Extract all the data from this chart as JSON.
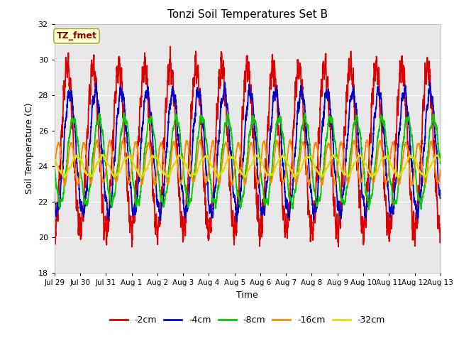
{
  "title": "Tonzi Soil Temperatures Set B",
  "xlabel": "Time",
  "ylabel": "Soil Temperature (C)",
  "ylim": [
    18,
    32
  ],
  "yticks": [
    18,
    20,
    22,
    24,
    26,
    28,
    30,
    32
  ],
  "num_points": 3000,
  "series": [
    {
      "label": "-2cm",
      "color": "#dd0000",
      "amplitude": 4.6,
      "period": 1.0,
      "mean": 25.0,
      "phase": 0.25,
      "noise_amp": 0.5,
      "noise_freq_mult": 3
    },
    {
      "label": "-4cm",
      "color": "#0000cc",
      "amplitude": 3.4,
      "period": 1.0,
      "mean": 24.8,
      "phase": 0.35,
      "noise_amp": 0.25,
      "noise_freq_mult": 2
    },
    {
      "label": "-8cm",
      "color": "#00cc00",
      "amplitude": 2.4,
      "period": 1.0,
      "mean": 24.3,
      "phase": 0.48,
      "noise_amp": 0.15,
      "noise_freq_mult": 2
    },
    {
      "label": "-16cm",
      "color": "#ff8800",
      "amplitude": 1.15,
      "period": 0.5,
      "mean": 24.2,
      "phase": 0.05,
      "noise_amp": 0.08,
      "noise_freq_mult": 1
    },
    {
      "label": "-32cm",
      "color": "#dddd00",
      "amplitude": 0.55,
      "period": 1.0,
      "mean": 24.0,
      "phase": 0.62,
      "noise_amp": 0.06,
      "noise_freq_mult": 1
    }
  ],
  "annotation_text": "TZ_fmet",
  "annotation_color": "#8b0000",
  "annotation_bg": "#ffffcc",
  "annotation_border": "#aaaa44",
  "background_color": "#ffffff",
  "plot_bg": "#e8e8e8",
  "tick_labels": [
    "Jul 29",
    "Jul 30",
    "Jul 31",
    "Aug 1",
    "Aug 2",
    "Aug 3",
    "Aug 4",
    "Aug 5",
    "Aug 6",
    "Aug 7",
    "Aug 8",
    "Aug 9",
    "Aug 10",
    "Aug 11",
    "Aug 12",
    "Aug 13"
  ],
  "linewidth": 1.3
}
